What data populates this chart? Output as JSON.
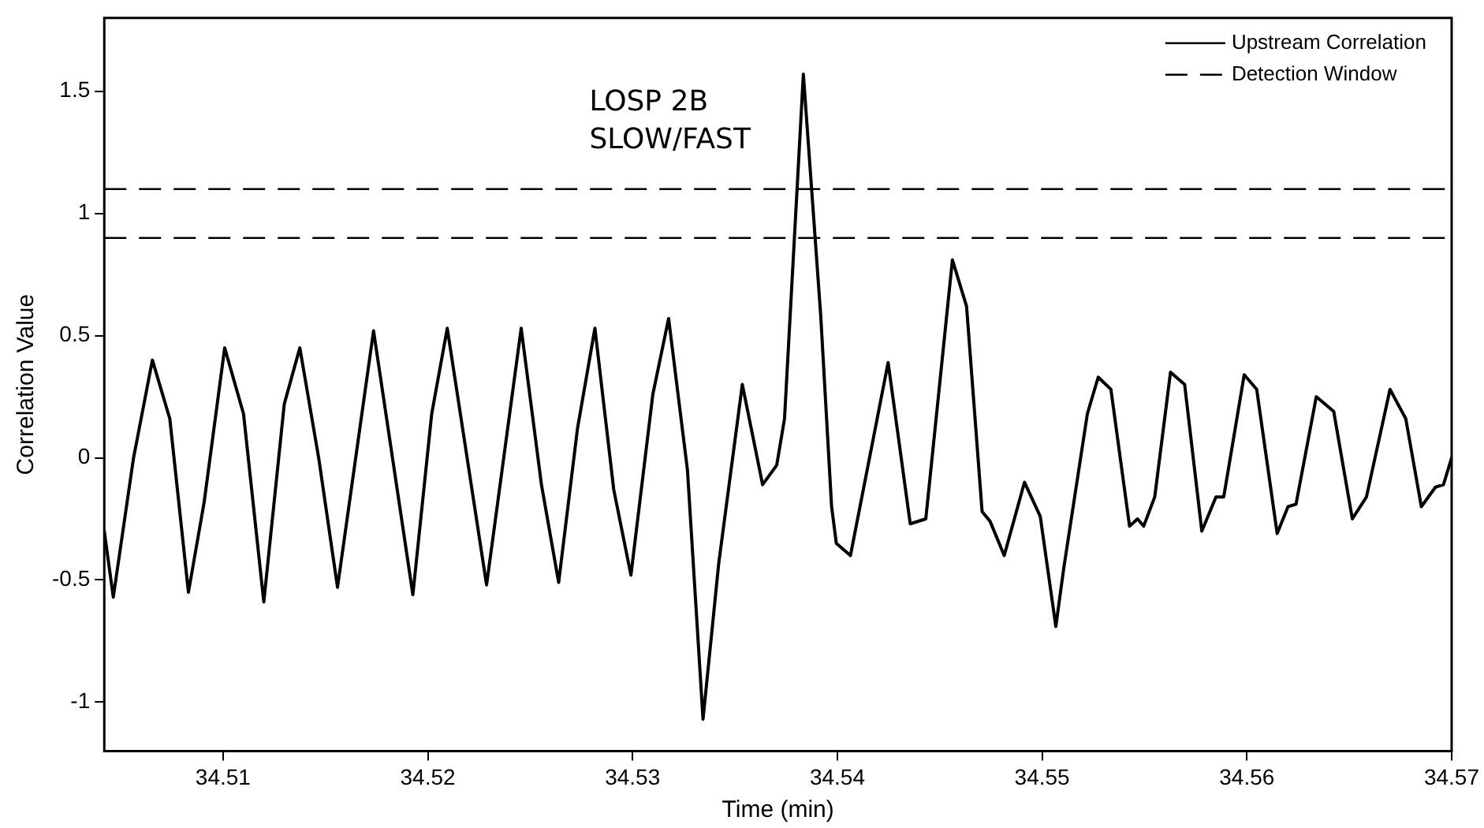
{
  "chart_data": {
    "type": "line",
    "xlabel": "Time (min)",
    "ylabel": "Correlation Value",
    "xlim": [
      34.5042,
      34.57
    ],
    "xticks": [
      34.51,
      34.52,
      34.53,
      34.54,
      34.55,
      34.56,
      34.57
    ],
    "ylim": [
      -1.2,
      1.8
    ],
    "yticks": [
      -1,
      -0.5,
      0,
      0.5,
      1,
      1.5
    ],
    "legend": "top right",
    "marker": "none",
    "annotations": [
      "LOSP 2B\nSLOW/FAST"
    ],
    "ref_lines": [
      {
        "axis": "y",
        "value": 1.1,
        "label": "Detection Window",
        "color": "#000000",
        "line_style": "dashed"
      },
      {
        "axis": "y",
        "value": 0.9,
        "color": "#000000",
        "line_style": "dashed"
      }
    ],
    "series": [
      {
        "name": "Upstream Correlation",
        "color": "#000000",
        "line_style": "solid",
        "x": [
          34.5042,
          34.50464,
          34.50563,
          34.50655,
          34.5074,
          34.50831,
          34.50908,
          34.51008,
          34.511,
          34.51199,
          34.51299,
          34.51375,
          34.51467,
          34.51559,
          34.51735,
          34.51927,
          34.52019,
          34.52095,
          34.52287,
          34.52456,
          34.52555,
          34.52639,
          34.52731,
          34.52816,
          34.52908,
          34.52992,
          34.53099,
          34.53176,
          34.53268,
          34.53344,
          34.53421,
          34.53536,
          34.53635,
          34.53704,
          34.53742,
          34.53834,
          34.53919,
          34.53972,
          34.53995,
          34.54064,
          34.54248,
          34.54356,
          34.54432,
          34.54562,
          34.54631,
          34.54707,
          34.54746,
          34.54815,
          34.54914,
          34.54991,
          34.55067,
          34.55106,
          34.55221,
          34.55274,
          34.55336,
          34.55427,
          34.55466,
          34.55496,
          34.5555,
          34.55627,
          34.55696,
          34.5578,
          34.55849,
          34.55887,
          34.55987,
          34.56048,
          34.56148,
          34.56201,
          34.5624,
          34.56339,
          34.56424,
          34.56515,
          34.56584,
          34.56699,
          34.56776,
          34.56852,
          34.56921,
          34.5696,
          34.57
        ],
        "values": [
          -0.3,
          -0.57,
          0,
          0.4,
          0.16,
          -0.55,
          -0.18,
          0.45,
          0.18,
          -0.59,
          0.22,
          0.45,
          0,
          -0.53,
          0.52,
          -0.56,
          0.18,
          0.53,
          -0.52,
          0.53,
          -0.11,
          -0.51,
          0.12,
          0.53,
          -0.13,
          -0.48,
          0.26,
          0.57,
          -0.05,
          -1.07,
          -0.43,
          0.3,
          -0.11,
          -0.03,
          0.16,
          1.57,
          0.58,
          -0.2,
          -0.35,
          -0.4,
          0.39,
          -0.27,
          -0.25,
          0.81,
          0.62,
          -0.22,
          -0.26,
          -0.4,
          -0.1,
          -0.24,
          -0.69,
          -0.45,
          0.18,
          0.33,
          0.28,
          -0.28,
          -0.25,
          -0.28,
          -0.16,
          0.35,
          0.3,
          -0.3,
          -0.16,
          -0.16,
          0.34,
          0.28,
          -0.31,
          -0.2,
          -0.19,
          0.25,
          0.19,
          -0.25,
          -0.16,
          0.28,
          0.16,
          -0.2,
          -0.12,
          -0.11,
          0
        ]
      }
    ]
  }
}
